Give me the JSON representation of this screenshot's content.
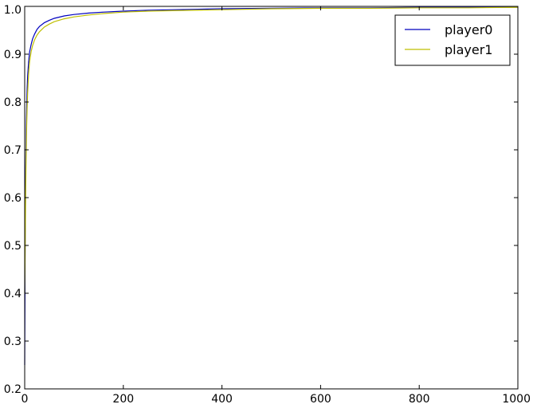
{
  "chart_data": {
    "type": "line",
    "title": "",
    "xlabel": "",
    "ylabel": "",
    "xlim": [
      0,
      1000
    ],
    "ylim": [
      0.2,
      1.0
    ],
    "xticks": [
      0,
      200,
      400,
      600,
      800,
      1000
    ],
    "yticks": [
      0.2,
      0.3,
      0.4,
      0.5,
      0.6,
      0.7,
      0.8,
      0.9,
      1.0
    ],
    "xtick_labels": [
      "0",
      "200",
      "400",
      "600",
      "800",
      "1000"
    ],
    "ytick_labels": [
      "0.2",
      "0.3",
      "0.4",
      "0.5",
      "0.6",
      "0.7",
      "0.8",
      "0.9",
      "1.0"
    ],
    "grid": false,
    "legend": {
      "placement": "top-right",
      "entries": [
        "player0",
        "player1"
      ]
    },
    "series": [
      {
        "name": "player0",
        "color": "#0000bf",
        "x": [
          0,
          1,
          2,
          3,
          4,
          5,
          6,
          8,
          10,
          13,
          16,
          20,
          25,
          30,
          40,
          50,
          60,
          80,
          100,
          130,
          160,
          200,
          250,
          300,
          400,
          500,
          600,
          700,
          800,
          900,
          1000
        ],
        "y": [
          0.25,
          0.52,
          0.66,
          0.74,
          0.79,
          0.83,
          0.855,
          0.885,
          0.905,
          0.92,
          0.932,
          0.942,
          0.952,
          0.958,
          0.966,
          0.971,
          0.975,
          0.98,
          0.983,
          0.986,
          0.988,
          0.99,
          0.992,
          0.993,
          0.995,
          0.996,
          0.997,
          0.997,
          0.998,
          0.998,
          0.998
        ]
      },
      {
        "name": "player1",
        "color": "#bfbf00",
        "x": [
          0,
          1,
          2,
          3,
          4,
          5,
          6,
          8,
          10,
          13,
          16,
          20,
          25,
          30,
          40,
          50,
          60,
          80,
          100,
          130,
          160,
          200,
          250,
          300,
          400,
          500,
          600,
          700,
          800,
          900,
          1000
        ],
        "y": [
          0.4,
          0.5,
          0.61,
          0.69,
          0.75,
          0.79,
          0.82,
          0.86,
          0.885,
          0.905,
          0.918,
          0.93,
          0.94,
          0.947,
          0.957,
          0.963,
          0.968,
          0.974,
          0.978,
          0.982,
          0.985,
          0.988,
          0.99,
          0.991,
          0.993,
          0.995,
          0.996,
          0.996,
          0.997,
          0.997,
          0.998
        ]
      }
    ]
  }
}
